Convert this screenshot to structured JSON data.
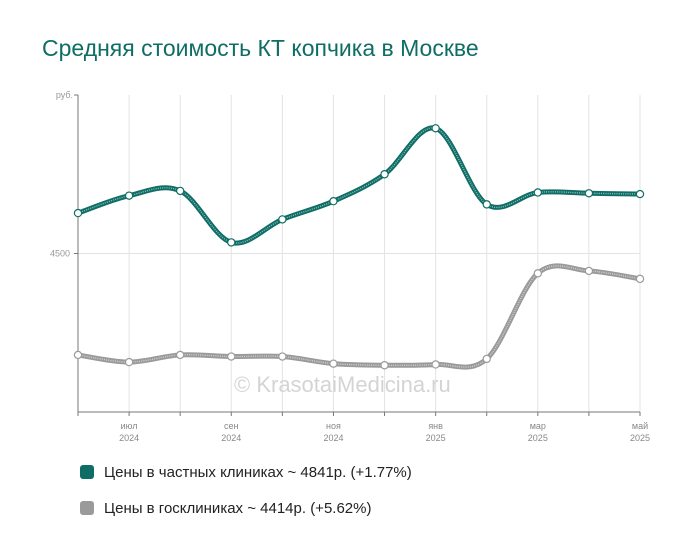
{
  "title": "Средняя стоимость КТ копчика в Москве",
  "watermark": "© KrasotaiMedicina.ru",
  "chart_data": {
    "type": "line",
    "ylabel": "руб.",
    "y_ticks": [
      4500
    ],
    "ylim": [
      3500,
      5500
    ],
    "grid": true,
    "x": [
      "2024-06",
      "2024-07",
      "2024-08",
      "2024-09",
      "2024-10",
      "2024-11",
      "2024-12",
      "2025-01",
      "2025-02",
      "2025-03",
      "2025-04",
      "2025-05"
    ],
    "x_tick_labels": [
      {
        "index": 1,
        "month": "июл",
        "year": "2024"
      },
      {
        "index": 3,
        "month": "сен",
        "year": "2024"
      },
      {
        "index": 5,
        "month": "ноя",
        "year": "2024"
      },
      {
        "index": 7,
        "month": "янв",
        "year": "2025"
      },
      {
        "index": 9,
        "month": "мар",
        "year": "2025"
      },
      {
        "index": 11,
        "month": "май",
        "year": "2025"
      }
    ],
    "series": [
      {
        "name": "Цены в частных клиниках ~ 4841р. (+1.77%)",
        "color": "#0e6e66",
        "values": [
          4755,
          4865,
          4895,
          4570,
          4715,
          4830,
          5000,
          5290,
          4810,
          4885,
          4880,
          4875
        ]
      },
      {
        "name": "Цены в госклиниках ~ 4414р. (+5.62%)",
        "color": "#9a9a9a",
        "values": [
          3860,
          3815,
          3860,
          3850,
          3850,
          3805,
          3795,
          3800,
          3835,
          4375,
          4390,
          4340
        ]
      }
    ]
  }
}
